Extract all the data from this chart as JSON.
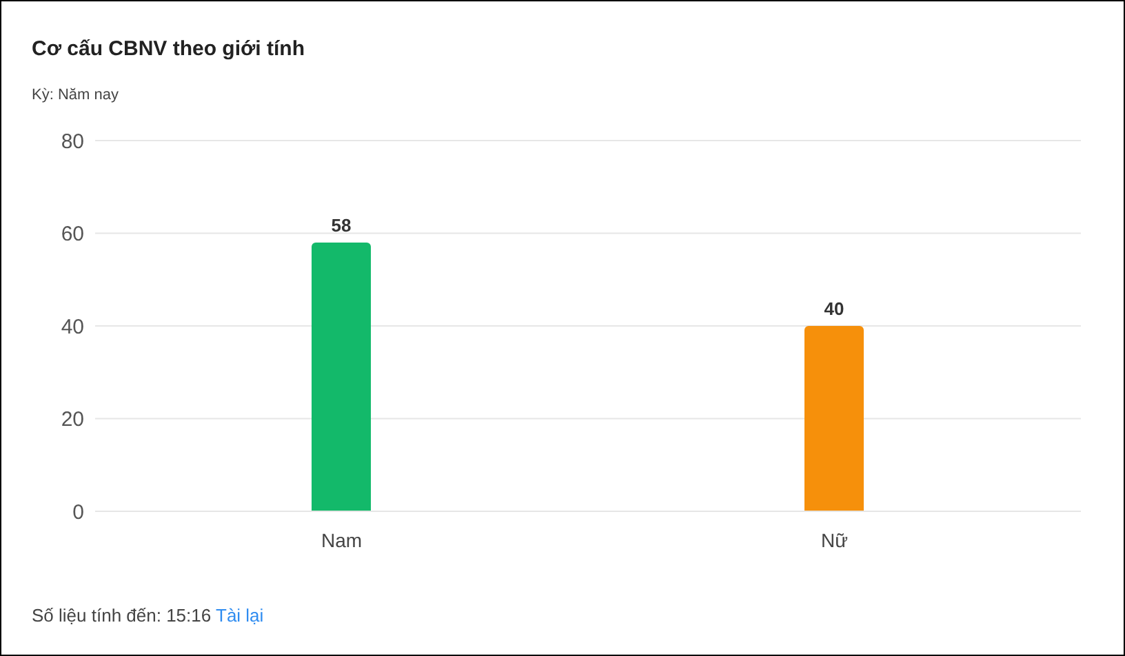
{
  "chart_data": {
    "type": "bar",
    "title": "Cơ cấu CBNV theo giới tính",
    "subtitle": "Kỳ: Năm nay",
    "categories": [
      "Nam",
      "Nữ"
    ],
    "values": [
      58,
      40
    ],
    "colors": [
      "#13b96a",
      "#f6900b"
    ],
    "ylim": [
      0,
      80
    ],
    "yticks": [
      0,
      20,
      40,
      60,
      80
    ],
    "grid": "y",
    "data_labels": true,
    "annotations": [
      "Số liệu tính đến: 15:16",
      "Tài lại"
    ]
  }
}
